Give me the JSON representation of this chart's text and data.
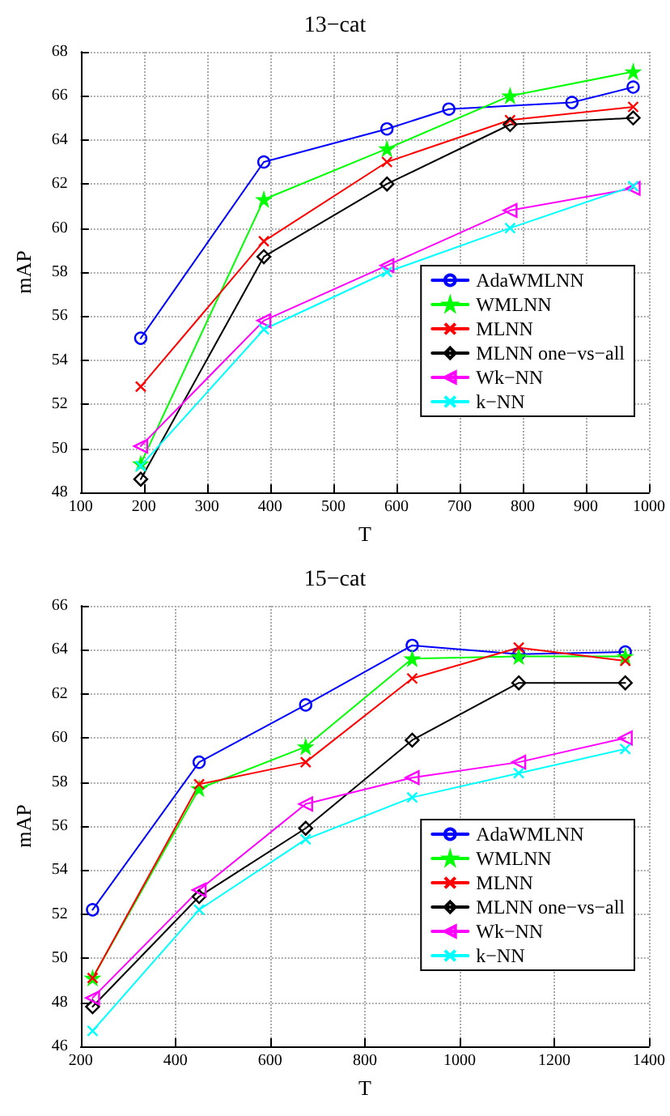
{
  "chart_data": [
    {
      "type": "line",
      "title": "13−cat",
      "xlabel": "T",
      "ylabel": "mAP",
      "x": [
        195,
        390,
        585,
        780,
        975
      ],
      "xlim": [
        100,
        1000
      ],
      "xticks": [
        100,
        200,
        300,
        400,
        500,
        600,
        700,
        800,
        900,
        1000
      ],
      "ylim": [
        48,
        68
      ],
      "yticks": [
        48,
        50,
        52,
        54,
        56,
        58,
        60,
        62,
        64,
        66,
        68
      ],
      "grid": true,
      "legend": "bottom right",
      "line_style": "solid",
      "series": [
        {
          "name": "AdaWMLNN",
          "color": "#0000ff",
          "marker": "circle",
          "x": [
            195,
            390,
            585,
            683,
            878,
            975
          ],
          "values": [
            55,
            63,
            64.5,
            65.4,
            65.7,
            66.4
          ]
        },
        {
          "name": "WMLNN",
          "color": "#00ff00",
          "marker": "star",
          "values": [
            49.3,
            61.3,
            63.6,
            66.0,
            67.1
          ]
        },
        {
          "name": "MLNN",
          "color": "#ff0000",
          "marker": "cross",
          "values": [
            52.8,
            59.4,
            63.0,
            64.9,
            65.5
          ]
        },
        {
          "name": "MLNN one−vs−all",
          "color": "#000000",
          "marker": "diamond",
          "values": [
            48.6,
            58.7,
            62.0,
            64.7,
            65.0
          ]
        },
        {
          "name": "Wk−NN",
          "color": "#ff00ff",
          "marker": "triangle",
          "values": [
            50.1,
            55.8,
            58.3,
            60.8,
            61.8
          ]
        },
        {
          "name": "k−NN",
          "color": "#00ffff",
          "marker": "cross",
          "values": [
            49.2,
            55.4,
            58.0,
            60.0,
            61.9
          ]
        }
      ]
    },
    {
      "type": "line",
      "title": "15−cat",
      "xlabel": "T",
      "ylabel": "mAP",
      "x": [
        225,
        450,
        675,
        900,
        1125,
        1350
      ],
      "xlim": [
        200,
        1400
      ],
      "xticks": [
        200,
        400,
        600,
        800,
        1000,
        1200,
        1400
      ],
      "ylim": [
        46,
        66
      ],
      "yticks": [
        46,
        48,
        50,
        52,
        54,
        56,
        58,
        60,
        62,
        64,
        66
      ],
      "grid": true,
      "legend": "bottom right",
      "line_style": "solid",
      "series": [
        {
          "name": "AdaWMLNN",
          "color": "#0000ff",
          "marker": "circle",
          "values": [
            52.2,
            58.9,
            61.5,
            64.2,
            63.8,
            63.9
          ]
        },
        {
          "name": "WMLNN",
          "color": "#00ff00",
          "marker": "star",
          "values": [
            49.1,
            57.7,
            59.6,
            63.6,
            63.7,
            63.7
          ]
        },
        {
          "name": "MLNN",
          "color": "#ff0000",
          "marker": "cross",
          "values": [
            49.1,
            57.9,
            58.9,
            62.7,
            64.1,
            63.5
          ]
        },
        {
          "name": "MLNN one−vs−all",
          "color": "#000000",
          "marker": "diamond",
          "values": [
            47.8,
            52.8,
            55.9,
            59.9,
            62.5,
            62.5
          ]
        },
        {
          "name": "Wk−NN",
          "color": "#ff00ff",
          "marker": "triangle",
          "values": [
            48.2,
            53.1,
            57.0,
            58.2,
            58.9,
            60.0
          ]
        },
        {
          "name": "k−NN",
          "color": "#00ffff",
          "marker": "cross",
          "values": [
            46.7,
            52.2,
            55.4,
            57.3,
            58.4,
            59.5
          ]
        }
      ]
    }
  ]
}
